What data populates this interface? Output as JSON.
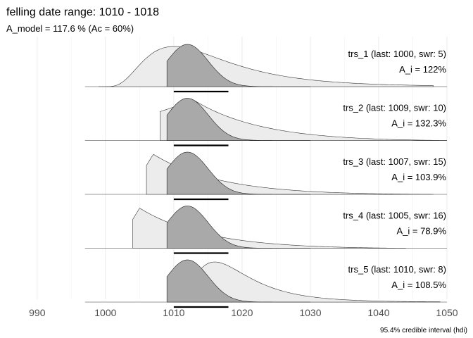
{
  "chart_data": {
    "type": "area",
    "title": "felling date range:  1010  -  1018",
    "subtitle": "A_model =  117.6 % (Ac = 60%)",
    "caption": "95.4% credible interval (hdi)",
    "xlim": [
      986,
      1050
    ],
    "x_ticks": [
      990,
      1000,
      1010,
      1020,
      1030,
      1040,
      1050
    ],
    "x_minor_ticks": [
      995,
      1005,
      1015,
      1025,
      1035,
      1045
    ],
    "hdi": [
      1010,
      1018
    ],
    "grid": true,
    "model_density": {
      "min": 1009,
      "mode": 1012,
      "end": 1050
    },
    "series": [
      {
        "name": "trs_1 (last: 1000, swr: 5)",
        "agreement": "A_i = 122%",
        "density": {
          "min": 999,
          "mode": 1010,
          "end": 1048,
          "shape": "smooth"
        }
      },
      {
        "name": "trs_2 (last: 1009, swr: 10)",
        "agreement": "A_i = 132.3%",
        "density": {
          "min": 1008,
          "mode": 1013,
          "end": 1050,
          "shape": "steep"
        }
      },
      {
        "name": "trs_3 (last: 1007, swr: 15)",
        "agreement": "A_i = 103.9%",
        "density": {
          "min": 1006,
          "mode": 1007,
          "end": 1048,
          "shape": "steep"
        }
      },
      {
        "name": "trs_4 (last: 1005, swr: 16)",
        "agreement": "A_i = 78.9%",
        "density": {
          "min": 1004,
          "mode": 1005,
          "end": 1044,
          "shape": "steep"
        }
      },
      {
        "name": "trs_5 (last: 1010, swr: 8)",
        "agreement": "A_i = 108.5%",
        "density": {
          "min": 1009,
          "mode": 1016,
          "end": 1049,
          "shape": "smooth"
        }
      }
    ]
  }
}
